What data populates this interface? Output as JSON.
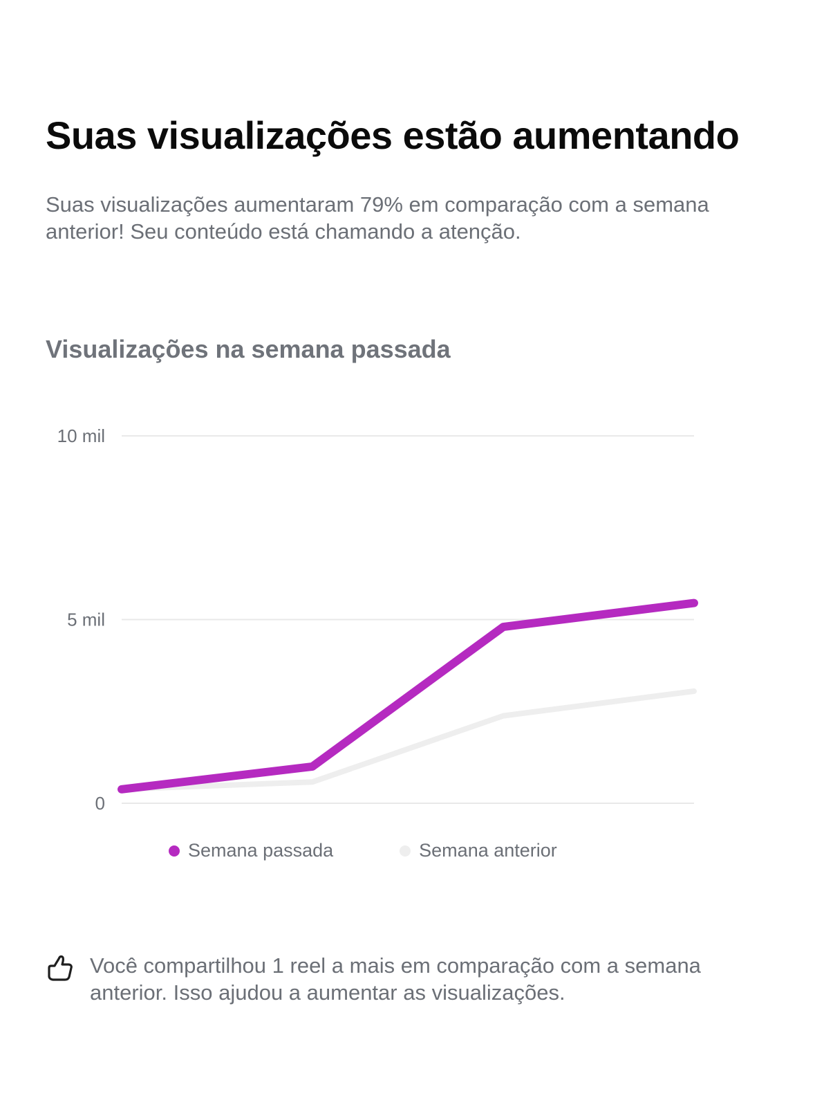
{
  "header": {
    "title": "Suas visualizações estão aumentando",
    "subtitle": "Suas visualizações aumentaram 79% em comparação com a semana anterior! Seu conteúdo está chamando a atenção."
  },
  "chart_section": {
    "title": "Visualizações na semana passada"
  },
  "chart_data": {
    "type": "line",
    "x": [
      1,
      2,
      3,
      4
    ],
    "ylim": [
      0,
      10000
    ],
    "yticks": [
      {
        "value": 0,
        "label": "0"
      },
      {
        "value": 5000,
        "label": "5 mil"
      },
      {
        "value": 10000,
        "label": "10 mil"
      }
    ],
    "grid": true,
    "legend_position": "bottom",
    "series": [
      {
        "name": "Semana passada",
        "color": "#b52ac0",
        "values": [
          380,
          1000,
          4800,
          5450
        ]
      },
      {
        "name": "Semana anterior",
        "color": "#eeeeee",
        "values": [
          380,
          580,
          2380,
          3050
        ]
      }
    ]
  },
  "legend": {
    "items": [
      {
        "label": "Semana passada",
        "color": "#b52ac0"
      },
      {
        "label": "Semana anterior",
        "color": "#eeeeee"
      }
    ]
  },
  "footnote": {
    "icon": "thumbs-up-icon",
    "text": "Você compartilhou 1 reel a mais em comparação com a semana anterior. Isso ajudou a aumentar as visualizações."
  }
}
